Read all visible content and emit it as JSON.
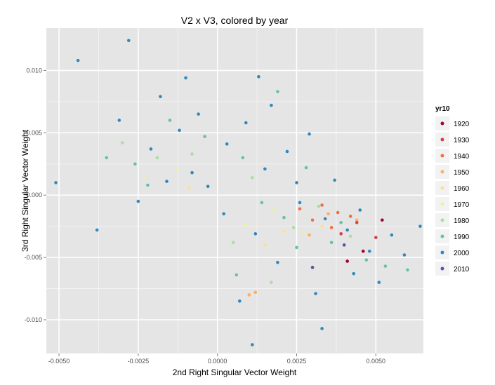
{
  "chart_data": {
    "type": "scatter",
    "title": "V2 x V3, colored by year",
    "xlabel": "2nd Right Singular Vector Weight",
    "ylabel": "3rd Right Singular Vector Weight",
    "xlim": [
      -0.0054,
      0.0065
    ],
    "ylim": [
      -0.0127,
      0.0134
    ],
    "x_ticks": [
      {
        "value": -0.005,
        "label": "-0.0050"
      },
      {
        "value": -0.0025,
        "label": "-0.0025"
      },
      {
        "value": 0.0,
        "label": "0.0000"
      },
      {
        "value": 0.0025,
        "label": "0.0025"
      },
      {
        "value": 0.005,
        "label": "0.0050"
      }
    ],
    "y_ticks": [
      {
        "value": -0.01,
        "label": "-0.010"
      },
      {
        "value": -0.005,
        "label": "-0.005"
      },
      {
        "value": 0.0,
        "label": "0.000"
      },
      {
        "value": 0.005,
        "label": "0.005"
      },
      {
        "value": 0.01,
        "label": "0.010"
      }
    ],
    "grid": true,
    "legend_position": "right",
    "legend": {
      "title": "yr10",
      "entries": [
        {
          "label": "1920",
          "color": "#9e0142"
        },
        {
          "label": "1930",
          "color": "#d53e4f"
        },
        {
          "label": "1940",
          "color": "#f46d43"
        },
        {
          "label": "1950",
          "color": "#fdae61"
        },
        {
          "label": "1960",
          "color": "#fee08b"
        },
        {
          "label": "1970",
          "color": "#e6f598"
        },
        {
          "label": "1980",
          "color": "#abdda4"
        },
        {
          "label": "1990",
          "color": "#66c2a5"
        },
        {
          "label": "2000",
          "color": "#3288bd"
        },
        {
          "label": "2010",
          "color": "#5e4fa2"
        }
      ]
    },
    "series": [
      {
        "name": "2000",
        "color": "#3288bd",
        "points": [
          [
            0.0003,
            0.0041
          ],
          [
            -0.0012,
            0.0052
          ],
          [
            0.0015,
            0.0021
          ],
          [
            0.0026,
            -0.0006
          ],
          [
            -0.0008,
            0.0018
          ],
          [
            0.0034,
            -0.0019
          ],
          [
            0.0041,
            -0.0028
          ],
          [
            -0.0021,
            0.0037
          ],
          [
            0.0009,
            0.0058
          ],
          [
            0.0048,
            -0.0045
          ],
          [
            0.0012,
            -0.0031
          ],
          [
            -0.0003,
            0.0007
          ],
          [
            0.0022,
            0.0035
          ],
          [
            0.0037,
            0.0012
          ],
          [
            -0.0016,
            0.0011
          ],
          [
            0.0055,
            -0.0032
          ],
          [
            -0.0044,
            0.0108
          ],
          [
            -0.0028,
            0.0124
          ],
          [
            -0.0051,
            0.001
          ],
          [
            -0.0038,
            -0.0028
          ],
          [
            0.0007,
            -0.0085
          ],
          [
            0.0011,
            -0.012
          ],
          [
            0.0033,
            -0.0107
          ],
          [
            0.0064,
            -0.0025
          ],
          [
            0.0059,
            -0.0048
          ],
          [
            -0.001,
            0.0094
          ],
          [
            0.0017,
            0.0072
          ],
          [
            0.0029,
            0.0049
          ],
          [
            -0.0025,
            -0.0005
          ],
          [
            0.0043,
            -0.0063
          ],
          [
            0.0019,
            -0.0054
          ],
          [
            -0.0006,
            0.0065
          ],
          [
            0.0031,
            -0.0079
          ],
          [
            0.0051,
            -0.007
          ],
          [
            -0.0031,
            0.006
          ],
          [
            0.0002,
            -0.0015
          ],
          [
            0.0025,
            0.001
          ],
          [
            0.0045,
            -0.0012
          ],
          [
            -0.0018,
            0.0079
          ],
          [
            0.0013,
            0.0095
          ]
        ]
      },
      {
        "name": "1990",
        "color": "#66c2a5",
        "points": [
          [
            -0.0015,
            0.006
          ],
          [
            0.0008,
            0.003
          ],
          [
            0.0021,
            -0.0018
          ],
          [
            -0.0026,
            0.0025
          ],
          [
            0.0036,
            -0.0038
          ],
          [
            0.0047,
            -0.0052
          ],
          [
            -0.0004,
            0.0047
          ],
          [
            0.0014,
            -0.0006
          ],
          [
            0.0028,
            0.0022
          ],
          [
            -0.0022,
            0.0008
          ],
          [
            0.0053,
            -0.0057
          ],
          [
            0.0006,
            -0.0064
          ],
          [
            -0.0035,
            0.003
          ],
          [
            0.0039,
            -0.0022
          ],
          [
            0.0019,
            0.0083
          ],
          [
            0.006,
            -0.006
          ],
          [
            0.0025,
            -0.0042
          ]
        ]
      },
      {
        "name": "1980",
        "color": "#abdda4",
        "points": [
          [
            -0.0019,
            0.003
          ],
          [
            0.0011,
            0.0014
          ],
          [
            0.0024,
            -0.0026
          ],
          [
            -0.0008,
            0.0033
          ],
          [
            0.0032,
            -0.0009
          ],
          [
            0.0005,
            -0.0038
          ],
          [
            0.0042,
            -0.0033
          ],
          [
            -0.003,
            0.0042
          ],
          [
            0.0017,
            -0.007
          ]
        ]
      },
      {
        "name": "1970",
        "color": "#e6f598",
        "points": [
          [
            -0.0013,
            0.002
          ],
          [
            0.0018,
            -0.0012
          ],
          [
            0.0009,
            -0.0024
          ],
          [
            0.0027,
            -0.003
          ],
          [
            -0.0023,
            0.0015
          ]
        ]
      },
      {
        "name": "1960",
        "color": "#fee08b",
        "points": [
          [
            0.0021,
            -0.0029
          ],
          [
            0.0033,
            -0.0025
          ],
          [
            0.0015,
            -0.004
          ],
          [
            -0.0009,
            0.0006
          ]
        ]
      },
      {
        "name": "1950",
        "color": "#fdae61",
        "points": [
          [
            0.0035,
            -0.0015
          ],
          [
            0.0029,
            -0.0032
          ],
          [
            0.001,
            -0.008
          ],
          [
            0.0012,
            -0.0078
          ],
          [
            0.0044,
            -0.002
          ]
        ]
      },
      {
        "name": "1940",
        "color": "#f46d43",
        "points": [
          [
            0.0033,
            -0.0008
          ],
          [
            0.0038,
            -0.0014
          ],
          [
            0.003,
            -0.002
          ],
          [
            0.0042,
            -0.0017
          ],
          [
            0.0026,
            -0.0011
          ],
          [
            0.0036,
            -0.0026
          ]
        ]
      },
      {
        "name": "1930",
        "color": "#d53e4f",
        "points": [
          [
            0.0044,
            -0.0022
          ],
          [
            0.0039,
            -0.0031
          ],
          [
            0.005,
            -0.0034
          ]
        ]
      },
      {
        "name": "1920",
        "color": "#9e0142",
        "points": [
          [
            0.0046,
            -0.0045
          ],
          [
            0.0052,
            -0.002
          ],
          [
            0.0041,
            -0.0053
          ]
        ]
      },
      {
        "name": "2010",
        "color": "#5e4fa2",
        "points": [
          [
            0.004,
            -0.004
          ],
          [
            0.003,
            -0.0058
          ]
        ]
      }
    ]
  }
}
